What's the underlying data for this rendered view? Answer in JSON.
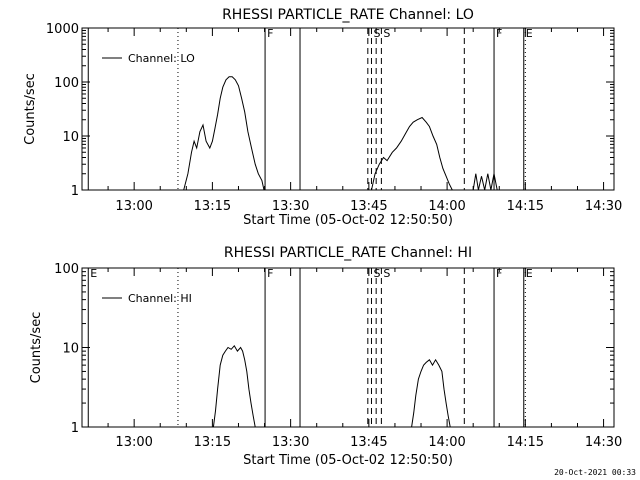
{
  "window": {
    "timestamp": "20-Oct-2021 00:33"
  },
  "chart_data": [
    {
      "type": "line",
      "title": "RHESSI PARTICLE_RATE Channel: LO",
      "xlabel": "Start Time (05-Oct-02 12:50:50)",
      "ylabel": "Counts/sec",
      "y_scale": "log",
      "ylim": [
        1,
        1000
      ],
      "y_ticks": [
        "1",
        "10",
        "100",
        "1000"
      ],
      "x_ticks": [
        "13:00",
        "13:15",
        "13:30",
        "13:45",
        "14:00",
        "14:15",
        "14:30"
      ],
      "x_tick_minutes": [
        10,
        25,
        40,
        55,
        70,
        85,
        100
      ],
      "xlim_minutes": [
        0,
        102
      ],
      "legend": {
        "label": "Channel: LO",
        "placement": "top-left"
      },
      "series": [
        {
          "x_minutes": [
            19.5,
            20.3,
            21.0,
            21.5,
            22.0,
            22.6,
            23.2,
            23.8,
            24.5,
            25.0,
            25.5,
            26.0,
            26.5,
            27.0,
            27.6,
            28.2,
            28.8,
            29.4,
            30.0,
            30.6,
            31.2,
            31.8,
            32.5,
            33.2,
            33.8,
            34.5,
            34.9
          ],
          "y": [
            1,
            2,
            5,
            8,
            6,
            12,
            16,
            8,
            6,
            8,
            14,
            25,
            50,
            80,
            110,
            125,
            125,
            110,
            85,
            50,
            28,
            12,
            6,
            3,
            2,
            1.5,
            1
          ]
        },
        {
          "x_minutes": [
            55.5,
            56.2,
            57.0,
            57.8,
            58.5,
            59.5,
            60.3,
            61.2,
            62.0,
            62.8,
            63.5,
            64.3,
            65.2,
            66.0,
            66.6,
            67.3,
            68.0,
            68.6,
            69.2,
            69.8,
            70.4,
            71.0
          ],
          "y": [
            1,
            2,
            3,
            4,
            3.5,
            5,
            6,
            8,
            11,
            15,
            18,
            20,
            22,
            18,
            15,
            10,
            7,
            4,
            2.5,
            1.8,
            1.3,
            1
          ]
        },
        {
          "x_minutes": [
            75.0,
            75.5,
            76.0,
            76.6,
            77.2,
            77.8,
            78.4,
            79.0,
            79.6,
            80.2
          ],
          "y": [
            1,
            2,
            1,
            1.8,
            1,
            2,
            1,
            2,
            1,
            1
          ]
        }
      ],
      "markers": [
        {
          "label": "E",
          "minute": 1.2,
          "style": "solid",
          "labeled": false
        },
        {
          "label": "",
          "minute": 18.4,
          "style": "dotted"
        },
        {
          "label": "F",
          "minute": 35.1,
          "style": "solid",
          "labeled": true
        },
        {
          "label": "",
          "minute": 41.8,
          "style": "solid"
        },
        {
          "label": "",
          "minute": 54.8,
          "style": "dashed"
        },
        {
          "label": "S",
          "minute": 55.5,
          "style": "dashed",
          "labeled": true
        },
        {
          "label": "",
          "minute": 56.4,
          "style": "dashed"
        },
        {
          "label": "S",
          "minute": 57.4,
          "style": "dashed",
          "labeled": true
        },
        {
          "label": "",
          "minute": 73.3,
          "style": "dashed"
        },
        {
          "label": "F",
          "minute": 79.0,
          "style": "solid",
          "labeled": true
        },
        {
          "label": "E",
          "minute": 84.7,
          "style": "solid",
          "labeled": true
        },
        {
          "label": "",
          "minute": 85.0,
          "style": "dotted"
        },
        {
          "label": "",
          "minute": 103.5,
          "style": "dotted"
        }
      ]
    },
    {
      "type": "line",
      "title": "RHESSI PARTICLE_RATE Channel: HI",
      "xlabel": "Start Time (05-Oct-02 12:50:50)",
      "ylabel": "Counts/sec",
      "y_scale": "log",
      "ylim": [
        1,
        100
      ],
      "y_ticks": [
        "1",
        "10",
        "100"
      ],
      "x_ticks": [
        "13:00",
        "13:15",
        "13:30",
        "13:45",
        "14:00",
        "14:15",
        "14:30"
      ],
      "x_tick_minutes": [
        10,
        25,
        40,
        55,
        70,
        85,
        100
      ],
      "xlim_minutes": [
        0,
        102
      ],
      "legend": {
        "label": "Channel: HI",
        "placement": "top-left"
      },
      "series": [
        {
          "x_minutes": [
            25.2,
            25.6,
            26.0,
            26.5,
            27.0,
            27.5,
            28.0,
            28.6,
            29.2,
            29.8,
            30.4,
            30.8,
            31.2,
            31.6,
            32.0,
            32.4,
            32.8,
            33.2
          ],
          "y": [
            1,
            1.6,
            3,
            6,
            8,
            9,
            10,
            9.5,
            10.5,
            9,
            10,
            9,
            7,
            5,
            3,
            2,
            1.4,
            1
          ]
        },
        {
          "x_minutes": [
            63.2,
            63.6,
            64.0,
            64.5,
            65.0,
            65.5,
            66.0,
            66.6,
            67.2,
            67.8,
            68.4,
            69.0,
            69.4,
            69.8,
            70.2,
            70.6
          ],
          "y": [
            1,
            1.5,
            2.5,
            4,
            5,
            6,
            6.5,
            7,
            6,
            7,
            6,
            5,
            3,
            2,
            1.4,
            1
          ]
        }
      ],
      "markers": [
        {
          "label": "E",
          "minute": 1.2,
          "style": "solid",
          "labeled": true
        },
        {
          "label": "",
          "minute": 18.4,
          "style": "dotted"
        },
        {
          "label": "F",
          "minute": 35.1,
          "style": "solid",
          "labeled": true
        },
        {
          "label": "",
          "minute": 41.8,
          "style": "solid"
        },
        {
          "label": "",
          "minute": 54.8,
          "style": "dashed"
        },
        {
          "label": "S",
          "minute": 55.5,
          "style": "dashed",
          "labeled": true
        },
        {
          "label": "",
          "minute": 56.4,
          "style": "dashed"
        },
        {
          "label": "S",
          "minute": 57.4,
          "style": "dashed",
          "labeled": true
        },
        {
          "label": "",
          "minute": 73.3,
          "style": "dashed"
        },
        {
          "label": "F",
          "minute": 79.0,
          "style": "solid",
          "labeled": true
        },
        {
          "label": "E",
          "minute": 84.7,
          "style": "solid",
          "labeled": true
        },
        {
          "label": "",
          "minute": 85.0,
          "style": "dotted"
        },
        {
          "label": "",
          "minute": 103.5,
          "style": "dotted"
        }
      ]
    }
  ]
}
